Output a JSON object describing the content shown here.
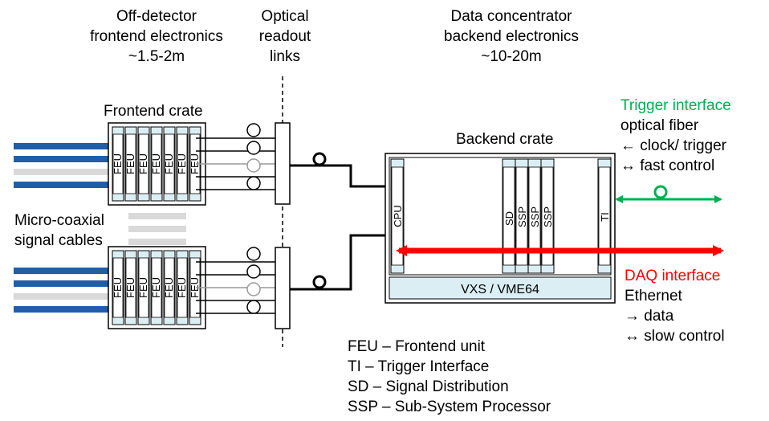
{
  "headers": {
    "frontend": [
      "Off-detector",
      "frontend electronics",
      "~1.5-2m"
    ],
    "optical": [
      "Optical",
      "readout",
      "links"
    ],
    "backend": [
      "Data concentrator",
      "backend electronics",
      "~10-20m"
    ]
  },
  "labels": {
    "frontend_crate": "Frontend crate",
    "backend_crate": "Backend crate",
    "micro_coax": [
      "Micro-coaxial",
      "signal cables"
    ],
    "vxs": "VXS / VME64"
  },
  "module_labels": {
    "feu": "FEU",
    "cpu": "CPU",
    "sd": "SD",
    "ssp": "SSP",
    "ti": "TI"
  },
  "trigger": {
    "title": "Trigger interface",
    "lines": [
      "optical fiber",
      "← clock/ trigger",
      "↔ fast control"
    ],
    "color": "#00b050"
  },
  "daq": {
    "title": "DAQ interface",
    "lines": [
      "Ethernet",
      "→ data",
      "↔ slow control"
    ],
    "color": "#ff0000"
  },
  "legend": [
    "FEU – Frontend unit",
    "TI – Trigger Interface",
    "SD – Signal Distribution",
    "SSP – Sub-System Processor"
  ],
  "colors": {
    "cable_blue": "#1f5fa8",
    "cable_gray": "#d9d9d9",
    "slot_fill": "#dbeef3",
    "vxs_fill": "#dbeef3"
  }
}
